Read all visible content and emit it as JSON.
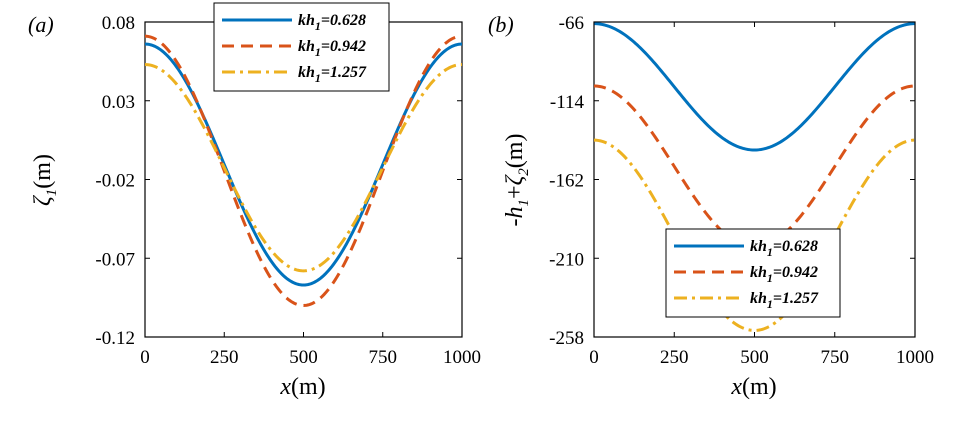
{
  "chart_data": [
    {
      "type": "line",
      "panel_label": "(a)",
      "xlabel": "x(m)",
      "ylabel": "ζ1(m)",
      "xlim": [
        0,
        1000
      ],
      "ylim": [
        -0.12,
        0.08
      ],
      "xticks": [
        "0",
        "250",
        "500",
        "750",
        "1000"
      ],
      "yticks": [
        "0.08",
        "0.03",
        "-0.02",
        "-0.07",
        "-0.12"
      ],
      "grid": false,
      "legend_position": "top-right",
      "series": [
        {
          "name": "kh1=0.628",
          "legend_base": "kh",
          "legend_sub": "1",
          "legend_rest": "=0.628",
          "color": "#0072BD",
          "dash": "solid",
          "mean": -0.0105,
          "amplitude": 0.0765
        },
        {
          "name": "kh1=0.942",
          "legend_base": "kh",
          "legend_sub": "1",
          "legend_rest": "=0.942",
          "color": "#D95319",
          "dash": "dashed",
          "mean": -0.0145,
          "amplitude": 0.0855
        },
        {
          "name": "kh1=1.257",
          "legend_base": "kh",
          "legend_sub": "1",
          "legend_rest": "=1.257",
          "color": "#EDB120",
          "dash": "dashdot",
          "mean": -0.0125,
          "amplitude": 0.0655
        }
      ]
    },
    {
      "type": "line",
      "panel_label": "(b)",
      "xlabel": "x(m)",
      "ylabel": "-h1+ζ2(m)",
      "xlim": [
        0,
        1000
      ],
      "ylim": [
        -258,
        -66
      ],
      "xticks": [
        "0",
        "250",
        "500",
        "750",
        "1000"
      ],
      "yticks": [
        "-66",
        "-114",
        "-162",
        "-210",
        "-258"
      ],
      "grid": false,
      "legend_position": "bottom-right",
      "series": [
        {
          "name": "kh1=0.628",
          "legend_base": "kh",
          "legend_sub": "1",
          "legend_rest": "=0.628",
          "color": "#0072BD",
          "dash": "solid",
          "mean": -105.5,
          "amplitude": 38.5
        },
        {
          "name": "kh1=0.942",
          "legend_base": "kh",
          "legend_sub": "1",
          "legend_rest": "=0.942",
          "color": "#D95319",
          "dash": "dashed",
          "mean": -154,
          "amplitude": 49
        },
        {
          "name": "kh1=1.257",
          "legend_base": "kh",
          "legend_sub": "1",
          "legend_rest": "=1.257",
          "color": "#EDB120",
          "dash": "dashdot",
          "mean": -196,
          "amplitude": 58
        }
      ]
    }
  ]
}
